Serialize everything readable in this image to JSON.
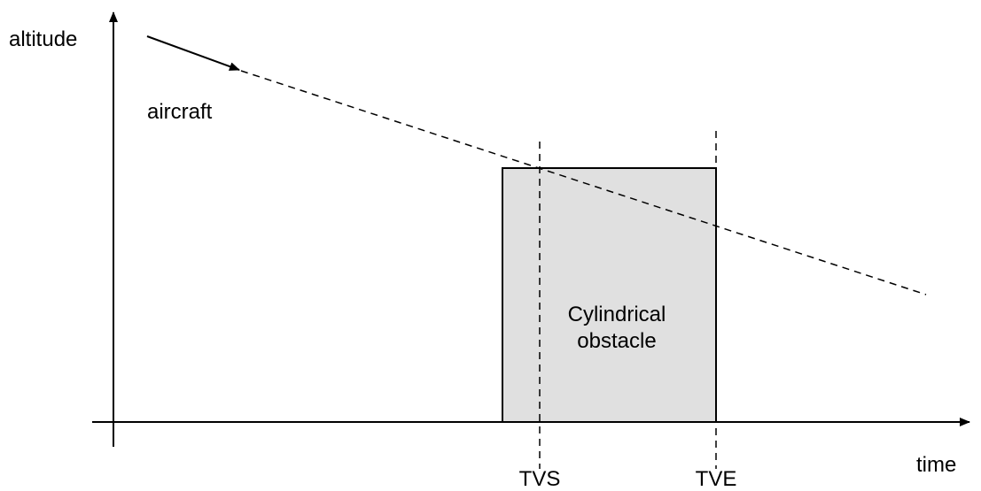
{
  "axes": {
    "y_label": "altitude",
    "x_label": "time"
  },
  "aircraft": {
    "label": "aircraft"
  },
  "obstacle": {
    "label_line1": "Cylindrical",
    "label_line2": "obstacle"
  },
  "markers": {
    "start": "TVS",
    "end": "TVE"
  }
}
